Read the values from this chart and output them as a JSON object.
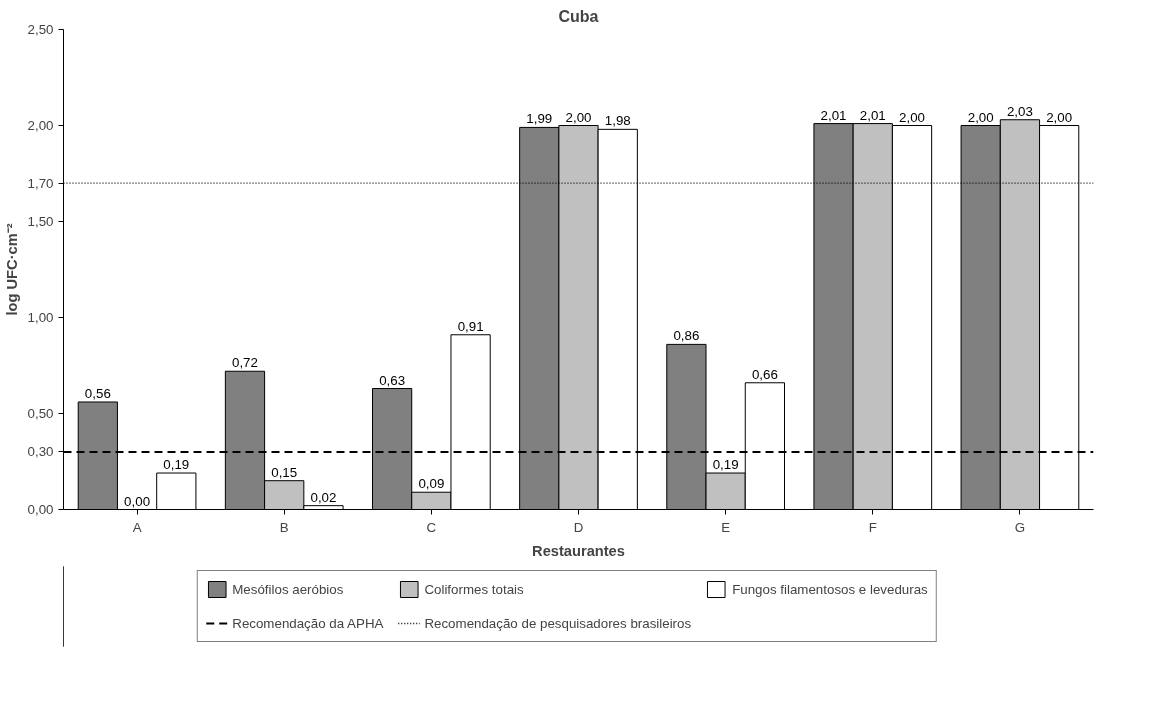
{
  "chart_data": {
    "type": "bar",
    "title": "Cuba",
    "xlabel": "Restaurantes",
    "ylabel": "log UFC·cm⁻²",
    "categories": [
      "A",
      "B",
      "C",
      "D",
      "E",
      "F",
      "G"
    ],
    "series": [
      {
        "name": "Mesófilos aeróbios",
        "color": "#808080",
        "values": [
          0.56,
          0.72,
          0.63,
          1.99,
          0.86,
          2.01,
          2.0
        ],
        "value_labels": [
          "0,56",
          "0,72",
          "0,63",
          "1,99",
          "0,86",
          "2,01",
          "2,00"
        ]
      },
      {
        "name": "Coliformes totais",
        "color": "#c0c0c0",
        "values": [
          0.0,
          0.15,
          0.09,
          2.0,
          0.19,
          2.01,
          2.03
        ],
        "value_labels": [
          "0,00",
          "0,15",
          "0,09",
          "2,00",
          "0,19",
          "2,01",
          "2,03"
        ]
      },
      {
        "name": "Fungos filamentosos e leveduras",
        "color": "#ffffff",
        "values": [
          0.19,
          0.02,
          0.91,
          1.98,
          0.66,
          2.0,
          2.0
        ],
        "value_labels": [
          "0,19",
          "0,02",
          "0,91",
          "1,98",
          "0,66",
          "2,00",
          "2,00"
        ]
      }
    ],
    "ylim": [
      0,
      2.5
    ],
    "yticks": [
      {
        "value": 0,
        "label": "0,00"
      },
      {
        "value": 0.3,
        "label": "0,30"
      },
      {
        "value": 0.5,
        "label": "0,50"
      },
      {
        "value": 1.0,
        "label": "1,00"
      },
      {
        "value": 1.5,
        "label": "1,50"
      },
      {
        "value": 1.7,
        "label": "1,70"
      },
      {
        "value": 2.0,
        "label": "2,00"
      },
      {
        "value": 2.5,
        "label": "2,50"
      }
    ],
    "ref_lines": [
      {
        "axis": "y",
        "value": 0.3,
        "label": "Recomendação da APHA",
        "line_style": "dashed",
        "color": "#000000"
      },
      {
        "axis": "y",
        "value": 1.7,
        "label": "Recomendação de pesquisadores brasileiros",
        "line_style": "dotted",
        "color": "#000000"
      }
    ],
    "grid": false,
    "legend": "bottom"
  }
}
